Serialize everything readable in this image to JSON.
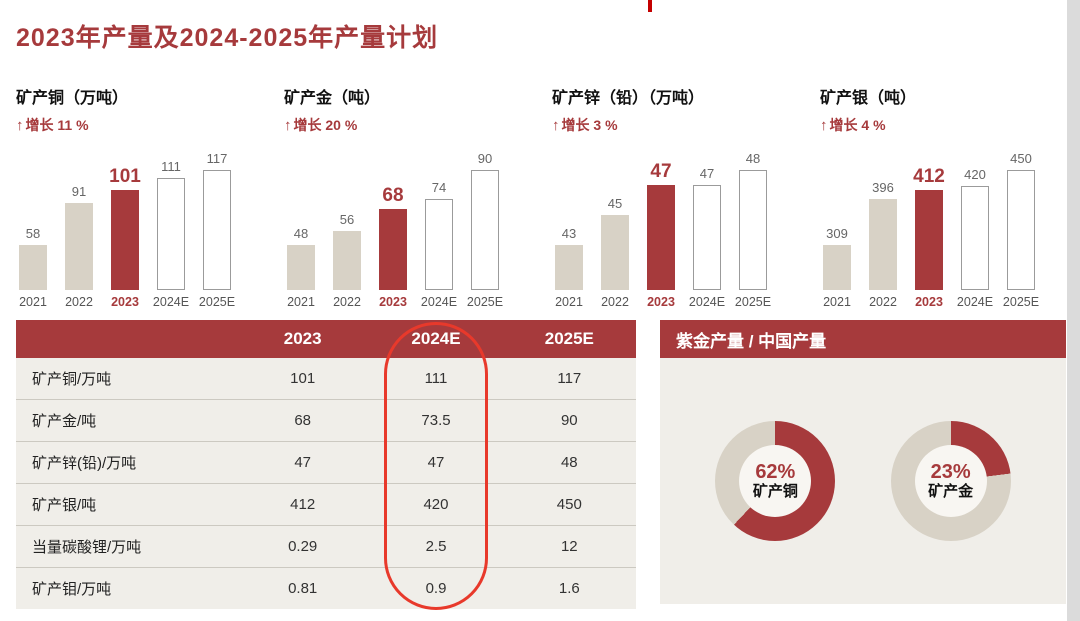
{
  "title": "2023年产量及2024-2025年产量计划",
  "colors": {
    "accent_red": "#A63A3C",
    "bar_past": "#D8D2C6",
    "bar_future_border": "#9B9B9B",
    "highlight_ring": "#E8392B",
    "donut_gray": "#D8D2C6",
    "panel_bg": "#F0EEE9"
  },
  "chart_data": [
    {
      "type": "bar",
      "title": "矿产铜（万吨）",
      "growth_arrow": "↑",
      "growth_label": "增长 11 %",
      "categories": [
        "2021",
        "2022",
        "2023",
        "2024E",
        "2025E"
      ],
      "values": [
        58,
        91,
        101,
        111,
        117
      ],
      "highlight_category": "2023",
      "baseline": "non-zero truncated axis, no gridlines, value labels above bars"
    },
    {
      "type": "bar",
      "title": "矿产金（吨）",
      "growth_arrow": "↑",
      "growth_label": "增长 20 %",
      "categories": [
        "2021",
        "2022",
        "2023",
        "2024E",
        "2025E"
      ],
      "values": [
        48,
        56,
        68,
        74,
        90
      ],
      "highlight_category": "2023",
      "baseline": "non-zero truncated axis, no gridlines, value labels above bars"
    },
    {
      "type": "bar",
      "title": "矿产锌（铅）（万吨）",
      "growth_arrow": "↑",
      "growth_label": "增长 3 %",
      "categories": [
        "2021",
        "2022",
        "2023",
        "2024E",
        "2025E"
      ],
      "values": [
        43,
        45,
        47,
        47,
        48
      ],
      "highlight_category": "2023",
      "baseline": "non-zero truncated axis, no gridlines, value labels above bars"
    },
    {
      "type": "bar",
      "title": "矿产银（吨）",
      "growth_arrow": "↑",
      "growth_label": "增长 4 %",
      "categories": [
        "2021",
        "2022",
        "2023",
        "2024E",
        "2025E"
      ],
      "values": [
        309,
        396,
        412,
        420,
        450
      ],
      "highlight_category": "2023",
      "baseline": "non-zero truncated axis, no gridlines, value labels above bars"
    },
    {
      "type": "table",
      "columns": [
        "",
        "2023",
        "2024E",
        "2025E"
      ],
      "rows": [
        [
          "矿产铜/万吨",
          "101",
          "111",
          "117"
        ],
        [
          "矿产金/吨",
          "68",
          "73.5",
          "90"
        ],
        [
          "矿产锌(铅)/万吨",
          "47",
          "47",
          "48"
        ],
        [
          "矿产银/吨",
          "412",
          "420",
          "450"
        ],
        [
          "当量碳酸锂/万吨",
          "0.29",
          "2.5",
          "12"
        ],
        [
          "矿产钼/万吨",
          "0.81",
          "0.9",
          "1.6"
        ]
      ],
      "highlighted_column": "2024E"
    },
    {
      "type": "pie",
      "title": "紫金产量 / 中国产量",
      "style": "donut, share in red starting at 12 o'clock clockwise, remainder gray",
      "charts": [
        {
          "label": "矿产铜",
          "value_pct": 62,
          "value_label": "62%"
        },
        {
          "label": "矿产金",
          "value_pct": 23,
          "value_label": "23%"
        }
      ]
    }
  ]
}
